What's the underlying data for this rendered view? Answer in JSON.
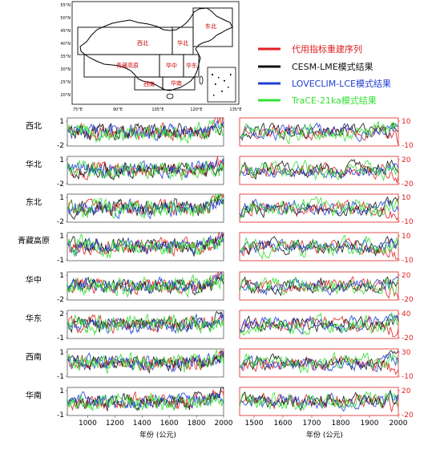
{
  "colors": {
    "proxy": "#e02020",
    "cesm": "#111111",
    "loveclim": "#1f3fd6",
    "trace": "#33e033",
    "right_axis": "#e02020",
    "map_region_text": "#cc0000"
  },
  "map": {
    "lat_ticks": [
      "55°N",
      "50°N",
      "45°N",
      "40°N",
      "35°N",
      "30°N",
      "25°N",
      "20°N"
    ],
    "lon_ticks": [
      "75°E",
      "90°E",
      "105°E",
      "120°E",
      "135°E"
    ],
    "regions": [
      "西北",
      "华北",
      "东北",
      "青藏高原",
      "华中",
      "华东",
      "西南",
      "华南"
    ]
  },
  "legend": [
    {
      "label": "代用指标重建序列",
      "color": "#e02020"
    },
    {
      "label": "CESM-LME模式结果",
      "color": "#111111"
    },
    {
      "label": "LOVECLIM-LCE模式结果",
      "color": "#1f3fd6"
    },
    {
      "label": "TraCE-21ka模式结果",
      "color": "#33e033"
    }
  ],
  "chart_data": [
    {
      "type": "line",
      "title": "",
      "panel": "left",
      "x_tick_labels": [
        "1000",
        "1200",
        "1400",
        "1600",
        "1800",
        "2000"
      ],
      "xlim": [
        850,
        2000
      ],
      "xlabel": "年份 (公元)",
      "series_names": [
        "代用指标重建序列",
        "CESM-LME模式结果",
        "LOVECLIM-LCE模式结果",
        "TraCE-21ka模式结果"
      ],
      "rows": [
        {
          "region": "西北",
          "y_tick_labels": [
            "1",
            "-2"
          ],
          "ylim": [
            -2,
            1.4
          ]
        },
        {
          "region": "华北",
          "y_tick_labels": [
            "1",
            "-2"
          ],
          "ylim": [
            -2,
            1.4
          ]
        },
        {
          "region": "东北",
          "y_tick_labels": [
            "1",
            "-2"
          ],
          "ylim": [
            -2,
            1.4
          ]
        },
        {
          "region": "青藏高原",
          "y_tick_labels": [
            "1",
            "-1"
          ],
          "ylim": [
            -1,
            1.2
          ]
        },
        {
          "region": "华中",
          "y_tick_labels": [
            "1",
            "-2"
          ],
          "ylim": [
            -2,
            1.4
          ]
        },
        {
          "region": "华东",
          "y_tick_labels": [
            "2",
            "-1"
          ],
          "ylim": [
            -1,
            2.3
          ]
        },
        {
          "region": "西南",
          "y_tick_labels": [
            "1",
            "-1"
          ],
          "ylim": [
            -1,
            1.2
          ]
        },
        {
          "region": "华南",
          "y_tick_labels": [
            "1",
            "-1"
          ],
          "ylim": [
            -1,
            1.2
          ]
        }
      ]
    },
    {
      "type": "line",
      "title": "",
      "panel": "right",
      "x_tick_labels": [
        "1500",
        "1600",
        "1700",
        "1800",
        "1900",
        "2000"
      ],
      "xlim": [
        1450,
        2000
      ],
      "xlabel": "年份 (公元)",
      "series_names": [
        "代用指标重建序列",
        "CESM-LME模式结果",
        "LOVECLIM-LCE模式结果",
        "TraCE-21ka模式结果"
      ],
      "rows": [
        {
          "region": "西北",
          "y_tick_labels": [
            "10",
            "-10"
          ],
          "ylim": [
            -10,
            10
          ]
        },
        {
          "region": "华北",
          "y_tick_labels": [
            "20",
            "-20"
          ],
          "ylim": [
            -20,
            20
          ]
        },
        {
          "region": "东北",
          "y_tick_labels": [
            "10",
            "-10"
          ],
          "ylim": [
            -10,
            10
          ]
        },
        {
          "region": "青藏高原",
          "y_tick_labels": [
            "10",
            "-10"
          ],
          "ylim": [
            -10,
            10
          ]
        },
        {
          "region": "华中",
          "y_tick_labels": [
            "20",
            "-20"
          ],
          "ylim": [
            -20,
            20
          ]
        },
        {
          "region": "华东",
          "y_tick_labels": [
            "40",
            "-20"
          ],
          "ylim": [
            -20,
            40
          ]
        },
        {
          "region": "西南",
          "y_tick_labels": [
            "30",
            "-10"
          ],
          "ylim": [
            -10,
            30
          ]
        },
        {
          "region": "华南",
          "y_tick_labels": [
            "20",
            "-20"
          ],
          "ylim": [
            -20,
            20
          ]
        }
      ]
    }
  ]
}
